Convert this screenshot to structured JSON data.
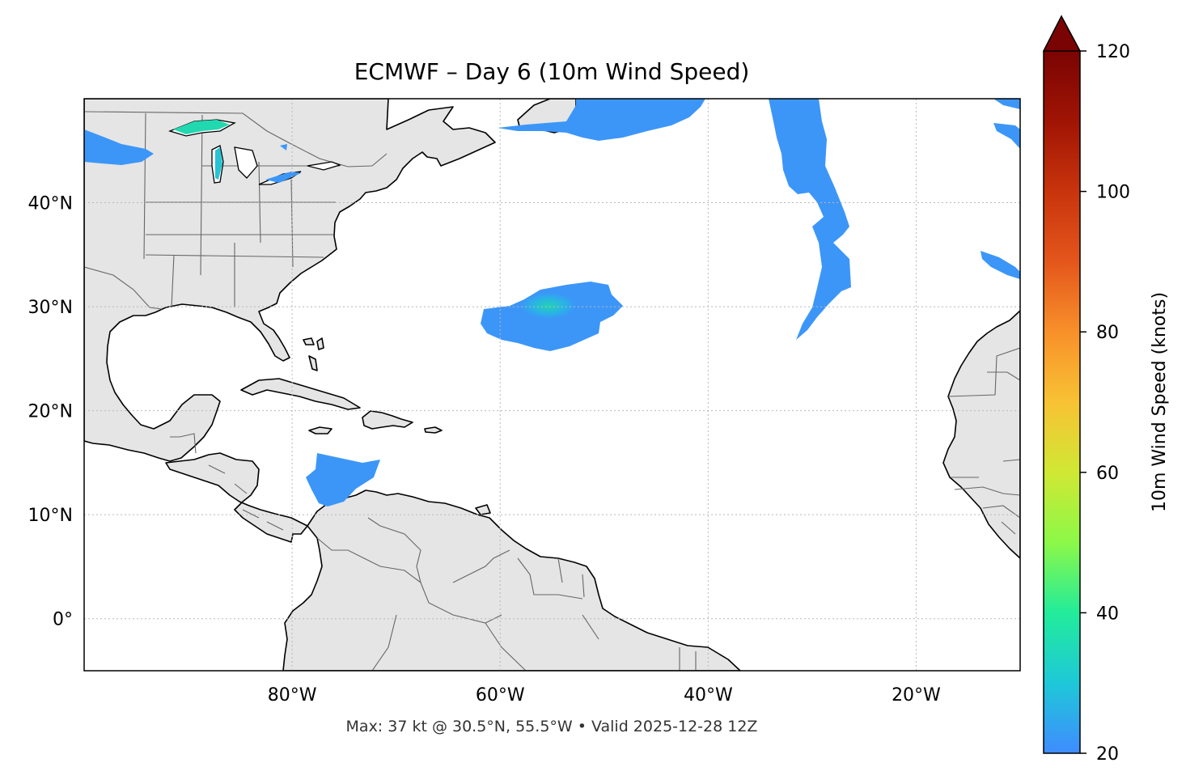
{
  "title": "ECMWF – Day 6 (10m Wind Speed)",
  "caption": "Max: 37 kt @ 30.5°N, 55.5°W • Valid 2025-12-28 12Z",
  "map": {
    "extent": {
      "lon_min": -100,
      "lon_max": -10,
      "lat_min": -5,
      "lat_max": 50
    },
    "lon_ticks": [
      {
        "lon": -80,
        "label": "80°W"
      },
      {
        "lon": -60,
        "label": "60°W"
      },
      {
        "lon": -40,
        "label": "40°W"
      },
      {
        "lon": -20,
        "label": "20°W"
      }
    ],
    "lat_ticks": [
      {
        "lat": 40,
        "label": "40°N"
      },
      {
        "lat": 30,
        "label": "30°N"
      },
      {
        "lat": 20,
        "label": "20°N"
      },
      {
        "lat": 10,
        "label": "10°N"
      },
      {
        "lat": 0,
        "label": "0°"
      }
    ],
    "gridlines": true,
    "land_color": "#e5e5e5",
    "ocean_color": "#ffffff",
    "coast_color": "#000000",
    "border_color": "#666666"
  },
  "colorbar": {
    "label": "10m Wind Speed (knots)",
    "min": 20,
    "max": 120,
    "ticks": [
      {
        "value": 20,
        "label": "20"
      },
      {
        "value": 40,
        "label": "40"
      },
      {
        "value": 60,
        "label": "60"
      },
      {
        "value": 80,
        "label": "80"
      },
      {
        "value": 100,
        "label": "100"
      },
      {
        "value": 120,
        "label": "120"
      }
    ],
    "extend": "max",
    "colormap": "turbo"
  },
  "wind_areas": [
    {
      "name": "central-atlantic-low",
      "center_lat": 29.0,
      "center_lon": -56.0,
      "peak_kt": 37
    },
    {
      "name": "northeast-atlantic-band",
      "center_lat": 40.0,
      "center_lon": -31.0,
      "peak_kt": 26
    },
    {
      "name": "newfoundland-area",
      "center_lat": 48.0,
      "center_lon": -52.0,
      "peak_kt": 25
    },
    {
      "name": "caribbean-area",
      "center_lat": 13.0,
      "center_lon": -76.0,
      "peak_kt": 24
    },
    {
      "name": "great-lakes-area",
      "center_lat": 46.5,
      "center_lon": -86.0,
      "peak_kt": 30
    },
    {
      "name": "iberian-coast-area",
      "center_lat": 35.0,
      "center_lon": -12.0,
      "peak_kt": 24
    }
  ]
}
